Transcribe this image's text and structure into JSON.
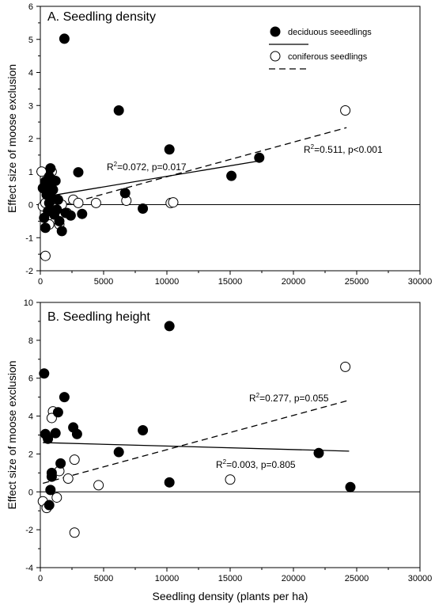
{
  "chart_data": [
    {
      "type": "scatter",
      "title": "A. Seedling density",
      "xlabel": "",
      "ylabel": "Effect size of moose exclusion",
      "xlim": [
        0,
        30000
      ],
      "ylim": [
        -2,
        6
      ],
      "xticks": [
        "0",
        "5000",
        "10000",
        "15000",
        "20000",
        "25000",
        "30000"
      ],
      "yticks": [
        "-2",
        "-1",
        "0",
        "1",
        "2",
        "3",
        "4",
        "5",
        "6"
      ],
      "legend": {
        "placement": "top-right",
        "entries": [
          {
            "label": "deciduous seeedlings",
            "marker": "filled",
            "line": "solid"
          },
          {
            "label": "coniferous seedlings",
            "marker": "open",
            "line": "dashed"
          }
        ]
      },
      "annotations": [
        {
          "series": "deciduous",
          "r2_text": "R",
          "sup": "2",
          "rest": "=0.072, p=0.017"
        },
        {
          "series": "coniferous",
          "r2_text": "R",
          "sup": "2",
          "rest": "=0.511, p<0.001"
        }
      ],
      "series": [
        {
          "key": "deciduous",
          "marker": "filled",
          "points": [
            [
              1900,
              5.02
            ],
            [
              6200,
              2.85
            ],
            [
              10200,
              1.67
            ],
            [
              17300,
              1.42
            ],
            [
              15100,
              0.87
            ],
            [
              3000,
              0.98
            ],
            [
              6700,
              0.35
            ],
            [
              3300,
              -0.28
            ],
            [
              8100,
              -0.12
            ],
            [
              1700,
              -0.8
            ],
            [
              2000,
              -0.25
            ],
            [
              2400,
              -0.33
            ],
            [
              200,
              0.5
            ],
            [
              400,
              0.7
            ],
            [
              500,
              0.3
            ],
            [
              600,
              0.6
            ],
            [
              700,
              0.85
            ],
            [
              800,
              1.1
            ],
            [
              900,
              0.2
            ],
            [
              1000,
              0.45
            ],
            [
              1100,
              -0.3
            ],
            [
              1200,
              0.72
            ],
            [
              1300,
              -0.15
            ],
            [
              300,
              -0.4
            ],
            [
              400,
              -0.7
            ],
            [
              600,
              -0.2
            ],
            [
              700,
              0.05
            ],
            [
              800,
              0.35
            ],
            [
              1400,
              0.15
            ],
            [
              1500,
              -0.5
            ]
          ],
          "trend": {
            "style": "solid",
            "x": [
              500,
              17400
            ],
            "y": [
              0.25,
              1.33
            ]
          }
        },
        {
          "key": "coniferous",
          "marker": "open",
          "points": [
            [
              24100,
              2.85
            ],
            [
              100,
              1.0
            ],
            [
              900,
              1.0
            ],
            [
              200,
              -0.05
            ],
            [
              500,
              -0.4
            ],
            [
              700,
              -0.6
            ],
            [
              1000,
              0.05
            ],
            [
              1300,
              -0.1
            ],
            [
              1500,
              -0.6
            ],
            [
              1700,
              0.0
            ],
            [
              2100,
              -0.25
            ],
            [
              2600,
              0.15
            ],
            [
              3000,
              0.05
            ],
            [
              4400,
              0.05
            ],
            [
              6800,
              0.12
            ],
            [
              10300,
              0.05
            ],
            [
              10500,
              0.07
            ],
            [
              400,
              -1.55
            ],
            [
              400,
              0.05
            ]
          ],
          "trend": {
            "style": "dashed",
            "x": [
              500,
              24200
            ],
            "y": [
              -0.15,
              2.33
            ]
          }
        }
      ]
    },
    {
      "type": "scatter",
      "title": "B. Seedling height",
      "xlabel": "Seedling density (plants per ha)",
      "ylabel": "Effect size of moose exclusion",
      "xlim": [
        0,
        30000
      ],
      "ylim": [
        -4,
        10
      ],
      "xticks": [
        "0",
        "5000",
        "10000",
        "15000",
        "20000",
        "25000",
        "30000"
      ],
      "yticks": [
        "-4",
        "-2",
        "0",
        "2",
        "4",
        "6",
        "8",
        "10"
      ],
      "annotations": [
        {
          "series": "coniferous",
          "r2_text": "R",
          "sup": "2",
          "rest": "=0.277, p=0.055"
        },
        {
          "series": "deciduous",
          "r2_text": "R",
          "sup": "2",
          "rest": "=0.003, p=0.805"
        }
      ],
      "series": [
        {
          "key": "deciduous",
          "marker": "filled",
          "points": [
            [
              10200,
              8.75
            ],
            [
              300,
              6.25
            ],
            [
              1900,
              5.0
            ],
            [
              1400,
              4.2
            ],
            [
              1200,
              3.1
            ],
            [
              2600,
              3.4
            ],
            [
              2900,
              3.05
            ],
            [
              8100,
              3.25
            ],
            [
              400,
              3.05
            ],
            [
              600,
              2.8
            ],
            [
              6200,
              2.1
            ],
            [
              1600,
              1.5
            ],
            [
              900,
              1.0
            ],
            [
              800,
              0.1
            ],
            [
              10200,
              0.5
            ],
            [
              22000,
              2.05
            ],
            [
              24500,
              0.25
            ],
            [
              700,
              -0.7
            ],
            [
              900,
              0.8
            ]
          ],
          "trend": {
            "style": "solid",
            "x": [
              200,
              24400
            ],
            "y": [
              2.6,
              2.15
            ]
          }
        },
        {
          "key": "coniferous",
          "marker": "open",
          "points": [
            [
              24100,
              6.6
            ],
            [
              1000,
              4.25
            ],
            [
              900,
              3.9
            ],
            [
              2700,
              1.7
            ],
            [
              1500,
              1.1
            ],
            [
              2200,
              0.7
            ],
            [
              4600,
              0.35
            ],
            [
              15000,
              0.65
            ],
            [
              200,
              -0.5
            ],
            [
              500,
              -0.85
            ],
            [
              1300,
              -0.3
            ],
            [
              2700,
              -2.15
            ]
          ],
          "trend": {
            "style": "dashed",
            "x": [
              200,
              24200
            ],
            "y": [
              0.45,
              4.8
            ]
          }
        }
      ]
    }
  ]
}
